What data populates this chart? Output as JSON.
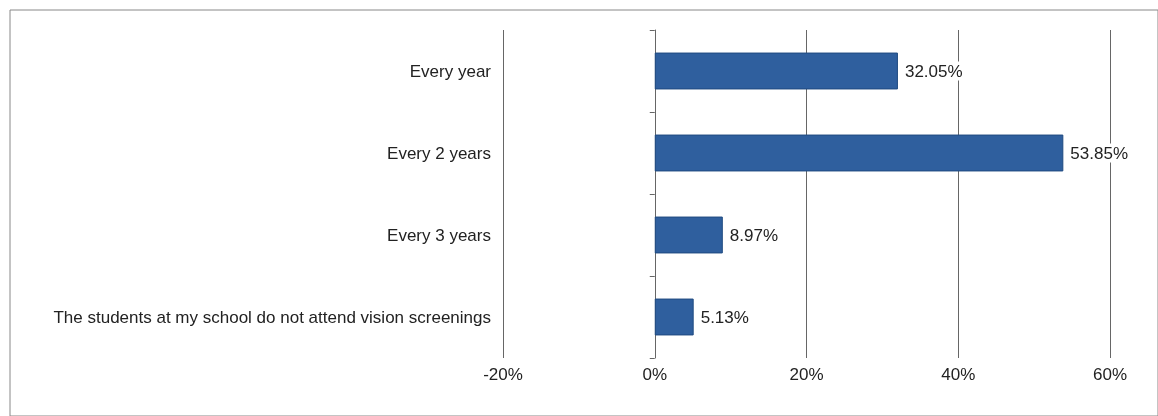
{
  "chart_data": {
    "type": "bar",
    "orientation": "horizontal",
    "categories": [
      "Every year",
      "Every 2 years",
      "Every 3 years",
      "The students at my school do not attend vision screenings"
    ],
    "values": [
      32.05,
      53.85,
      8.97,
      5.13
    ],
    "value_labels": [
      "32.05%",
      "53.85%",
      "8.97%",
      "5.13%"
    ],
    "color": "#2f5f9e",
    "xlim": [
      -20,
      60
    ],
    "xticks": [
      {
        "value": -20,
        "label": "-20%"
      },
      {
        "value": 0,
        "label": "0%"
      },
      {
        "value": 20,
        "label": "20%"
      },
      {
        "value": 40,
        "label": "40%"
      },
      {
        "value": 60,
        "label": "60%"
      }
    ],
    "grid": "x"
  }
}
